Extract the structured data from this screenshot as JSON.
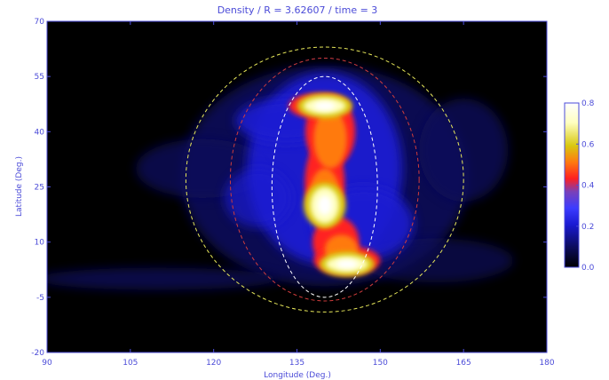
{
  "colors": {
    "axis": "#4b4bd8",
    "plot_background": "#000000",
    "ellipse_yellow": "#e8e85a",
    "ellipse_red": "#d03c3c",
    "ellipse_white": "#ffffff",
    "colormap": [
      "#000000",
      "#0c0c5a",
      "#1a1ad2",
      "#3c3cff",
      "#7a40b8",
      "#ff2020",
      "#ff7a10",
      "#d8c810",
      "#ffffc0",
      "#ffffff"
    ]
  },
  "chart_data": {
    "type": "heatmap",
    "title": "Density / R = 3.62607 / time = 3",
    "xlabel": "Longitude (Deg.)",
    "ylabel": "Latitude (Deg.)",
    "xlim": [
      90,
      180
    ],
    "ylim": [
      -20,
      70
    ],
    "xticks": [
      "90",
      "105",
      "120",
      "135",
      "150",
      "165",
      "180"
    ],
    "yticks": [
      "-20",
      "-5",
      "10",
      "25",
      "40",
      "55",
      "70"
    ],
    "colorbar": {
      "range": [
        0.0,
        0.8
      ],
      "ticks": [
        "0.0",
        "0.2",
        "0.4",
        "0.6",
        "0.8"
      ]
    },
    "peaks": [
      {
        "lon": 140,
        "lat": 47,
        "value": 0.7
      },
      {
        "lon": 140,
        "lat": 20,
        "value": 0.8
      },
      {
        "lon": 144,
        "lat": 4,
        "value": 0.7
      }
    ],
    "ellipses": [
      {
        "color": "yellow",
        "center": [
          140,
          27
        ],
        "radius_lon": 25,
        "radius_lat": 36
      },
      {
        "color": "red",
        "center": [
          140,
          27
        ],
        "radius_lon": 17,
        "radius_lat": 33
      },
      {
        "color": "white",
        "center": [
          140,
          25
        ],
        "radius_lon": 9.5,
        "radius_lat": 30
      }
    ]
  }
}
